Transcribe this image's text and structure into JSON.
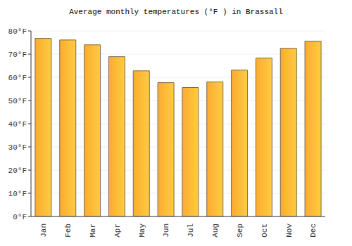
{
  "chart_data": {
    "type": "bar",
    "title": "Average monthly temperatures (°F ) in Brassall",
    "categories": [
      "Jan",
      "Feb",
      "Mar",
      "Apr",
      "May",
      "Jun",
      "Jul",
      "Aug",
      "Sep",
      "Oct",
      "Nov",
      "Dec"
    ],
    "values": [
      76.8,
      76.1,
      74.0,
      68.9,
      62.8,
      57.7,
      55.6,
      58.0,
      63.1,
      68.3,
      72.5,
      75.6
    ],
    "color": "#fcab30",
    "ylim": [
      0,
      80
    ],
    "yticks": [
      {
        "value": 0,
        "label": "0°F"
      },
      {
        "value": 10,
        "label": "10°F"
      },
      {
        "value": 20,
        "label": "20°F"
      },
      {
        "value": 30,
        "label": "30°F"
      },
      {
        "value": 40,
        "label": "40°F"
      },
      {
        "value": 50,
        "label": "50°F"
      },
      {
        "value": 60,
        "label": "60°F"
      },
      {
        "value": 70,
        "label": "70°F"
      },
      {
        "value": 80,
        "label": "80°F"
      }
    ],
    "grid": true
  }
}
